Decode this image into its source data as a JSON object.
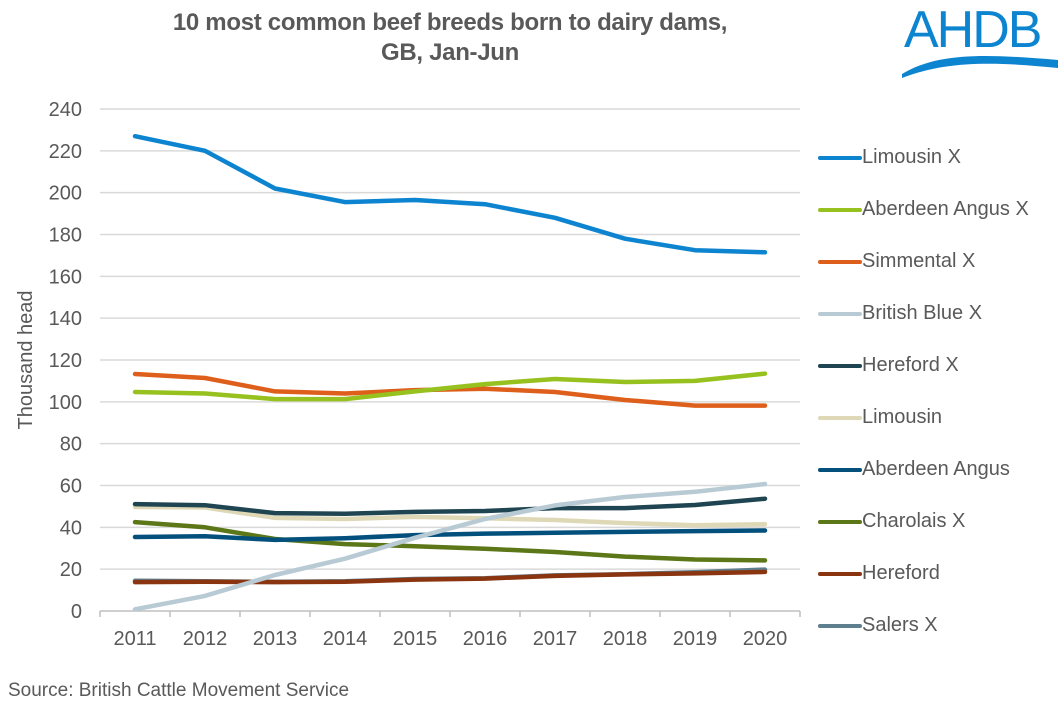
{
  "logo": {
    "text": "AHDB",
    "color": "#0d84cf"
  },
  "source": "Source: British Cattle Movement Service",
  "chart_data": {
    "type": "line",
    "title": "10 most common beef breeds born to dairy dams,\nGB, Jan-Jun",
    "title_lines": [
      "10 most common beef breeds born to dairy dams,",
      "GB, Jan-Jun"
    ],
    "xlabel": "",
    "ylabel": "Thousand head",
    "x": [
      "2011",
      "2012",
      "2013",
      "2014",
      "2015",
      "2016",
      "2017",
      "2018",
      "2019",
      "2020"
    ],
    "ylim": [
      0,
      240
    ],
    "yticks": [
      0,
      20,
      40,
      60,
      80,
      100,
      120,
      140,
      160,
      180,
      200,
      220,
      240
    ],
    "grid": true,
    "legend_position": "right",
    "series": [
      {
        "name": "Limousin X",
        "color": "#0d84cf",
        "values": [
          227,
          220,
          202,
          195.5,
          196.5,
          194.5,
          188,
          178,
          172.5,
          171.5
        ]
      },
      {
        "name": "Aberdeen Angus X",
        "color": "#96c11f",
        "values": [
          104.7,
          104,
          101.3,
          101.3,
          105,
          108.5,
          110.9,
          109.5,
          110,
          113.5
        ]
      },
      {
        "name": "Simmental X",
        "color": "#de5f1b",
        "values": [
          113.3,
          111.4,
          105,
          104,
          105.6,
          106.3,
          104.7,
          100.9,
          98.2,
          98.2
        ]
      },
      {
        "name": "British Blue X",
        "color": "#b8cad3",
        "values": [
          0.8,
          7.2,
          17.2,
          25,
          35,
          44,
          50.5,
          54.5,
          57,
          60.7
        ]
      },
      {
        "name": "Hereford X",
        "color": "#1e4551",
        "values": [
          51.1,
          50.6,
          46.8,
          46.5,
          47.4,
          47.8,
          49.2,
          49.2,
          50.7,
          53.7
        ]
      },
      {
        "name": "Limousin",
        "color": "#ded8b6",
        "values": [
          49.7,
          49.5,
          44.5,
          44,
          45,
          44.3,
          43.5,
          42,
          41,
          41.5
        ]
      },
      {
        "name": "Aberdeen Angus",
        "color": "#03507d",
        "values": [
          35.4,
          35.7,
          34,
          34.8,
          36.3,
          37,
          37.4,
          37.8,
          38.2,
          38.5
        ]
      },
      {
        "name": "Charolais X",
        "color": "#5c7718",
        "values": [
          42.5,
          40,
          34.4,
          32,
          31,
          29.8,
          28.2,
          26,
          24.6,
          24.2
        ]
      },
      {
        "name": "Hereford",
        "color": "#8b3510",
        "values": [
          13.8,
          14,
          13.8,
          14,
          15,
          15.5,
          16.8,
          17.5,
          18,
          18.7
        ]
      },
      {
        "name": "Salers X",
        "color": "#5e7f8d",
        "values": [
          14.5,
          14.2,
          13.9,
          14.2,
          15.3,
          15.7,
          17,
          17.6,
          18.5,
          19.8
        ]
      }
    ]
  }
}
